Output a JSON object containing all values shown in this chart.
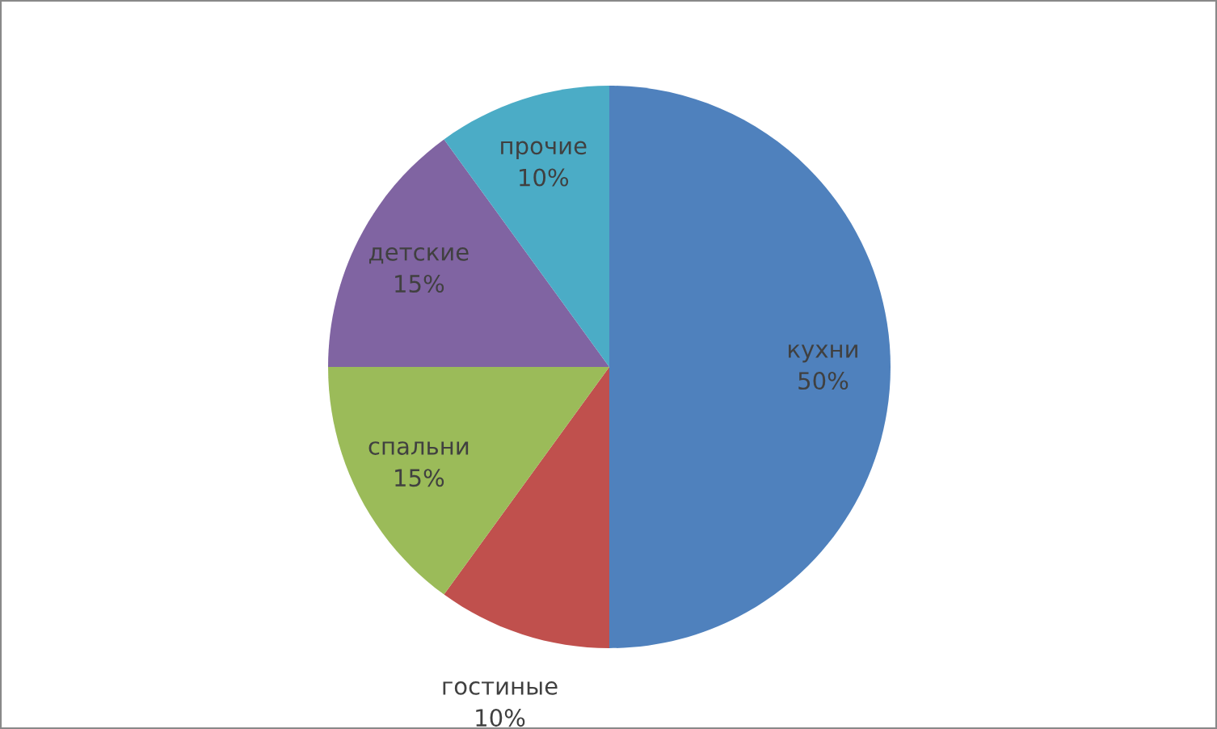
{
  "chart_data": {
    "type": "pie",
    "categories": [
      "кухни",
      "гостиные",
      "спальни",
      "детские",
      "прочие"
    ],
    "values": [
      50,
      10,
      15,
      15,
      10
    ],
    "colors": [
      "#4f81bd",
      "#c0504d",
      "#9bbb59",
      "#8064a2",
      "#4bacc6"
    ],
    "value_labels": [
      "50%",
      "10%",
      "15%",
      "15%",
      "10%"
    ],
    "legend": false
  }
}
